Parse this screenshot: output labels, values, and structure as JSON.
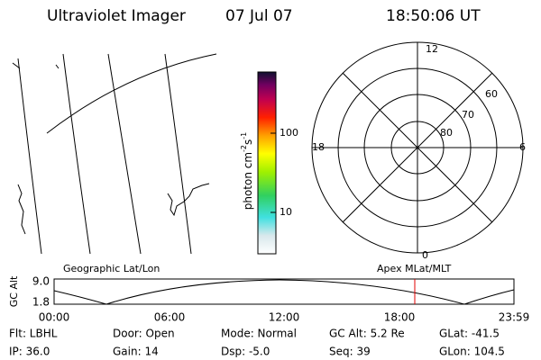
{
  "header": {
    "title": "Ultraviolet Imager",
    "date": "07 Jul 07",
    "time": "18:50:06 UT"
  },
  "colorbar": {
    "label": {
      "base": "photon cm",
      "sup1": "-2",
      "mid": "s",
      "sup2": "-1"
    },
    "ticks": [
      "100",
      "10"
    ]
  },
  "polar": {
    "mlt_labels": {
      "top": "12",
      "left": "18",
      "right": "6",
      "bottom": "0"
    },
    "lat_labels": [
      "60",
      "70",
      "80"
    ]
  },
  "altitude": {
    "axis_label": "GC Alt",
    "yticks": [
      "9.0",
      "1.8"
    ],
    "left_title": "Geographic Lat/Lon",
    "right_title": "Apex MLat/MLT",
    "xticks": [
      "00:00",
      "06:00",
      "12:00",
      "18:00",
      "23:59"
    ]
  },
  "info": {
    "rows": [
      [
        "Flt: LBHL",
        "Door: Open",
        "Mode: Normal",
        "GC Alt: 5.2 Re",
        "GLat: -41.5"
      ],
      [
        "IP: 36.0",
        "Gain: 14",
        "Dsp:  -5.0",
        "Seq: 39",
        "GLon: 104.5"
      ]
    ]
  }
}
